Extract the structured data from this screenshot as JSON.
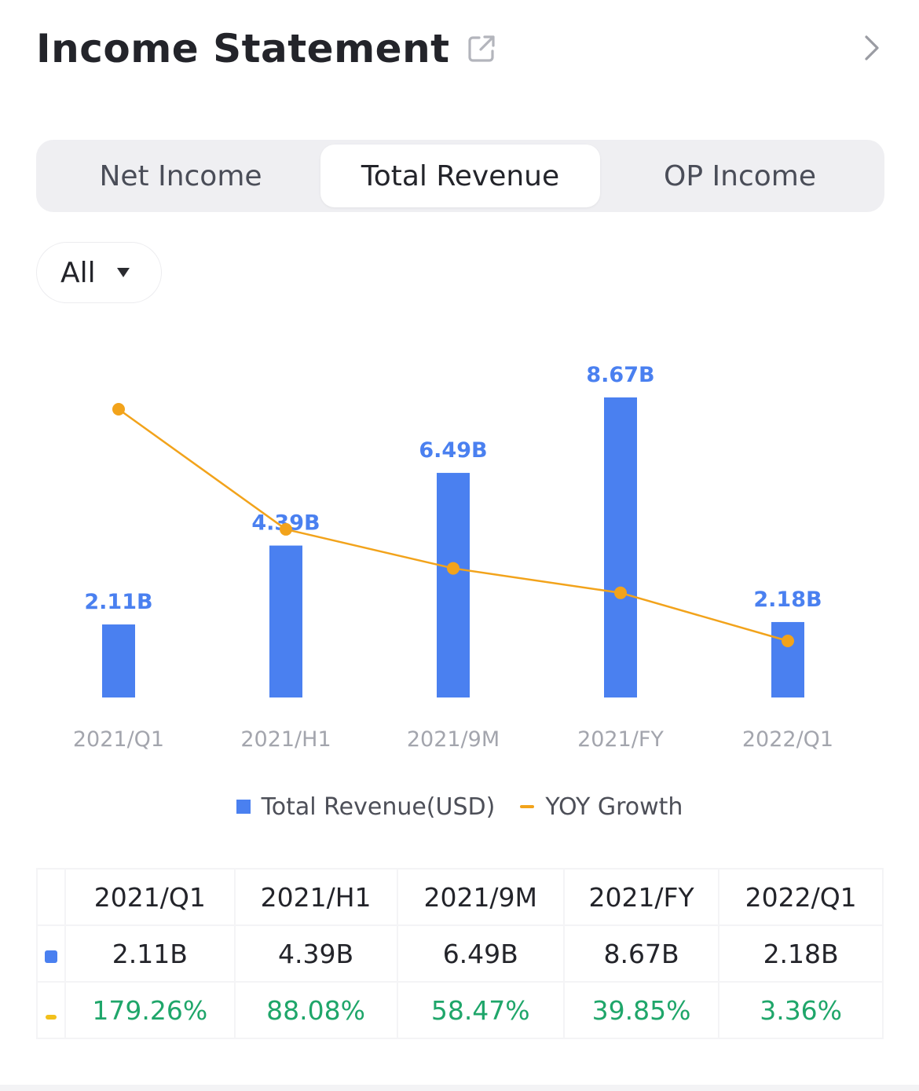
{
  "header": {
    "title": "Income Statement",
    "share_icon": "share-external-icon",
    "more_icon": "chevron-right-icon"
  },
  "tabs": [
    {
      "label": "Net Income",
      "active": false
    },
    {
      "label": "Total Revenue",
      "active": true
    },
    {
      "label": "OP Income",
      "active": false
    }
  ],
  "period_select": {
    "value": "All"
  },
  "colors": {
    "bar": "#4a80f0",
    "line": "#f2a31b",
    "positive": "#1fa66a"
  },
  "chart_data": {
    "type": "bar",
    "categories": [
      "2021/Q1",
      "2021/H1",
      "2021/9M",
      "2021/FY",
      "2022/Q1"
    ],
    "series": [
      {
        "name": "Total Revenue(USD)",
        "type": "bar",
        "values": [
          2.11,
          4.39,
          6.49,
          8.67,
          2.18
        ],
        "labels": [
          "2.11B",
          "4.39B",
          "6.49B",
          "8.67B",
          "2.18B"
        ]
      },
      {
        "name": "YOY Growth",
        "type": "line",
        "values": [
          179.26,
          88.08,
          58.47,
          39.85,
          3.36
        ]
      }
    ],
    "legend_position": "bottom"
  },
  "legend": {
    "bar_label": "Total Revenue(USD)",
    "line_label": "YOY Growth"
  },
  "table": {
    "headers": [
      "2021/Q1",
      "2021/H1",
      "2021/9M",
      "2021/FY",
      "2022/Q1"
    ],
    "revenue_row": [
      "2.11B",
      "4.39B",
      "6.49B",
      "8.67B",
      "2.18B"
    ],
    "growth_row": [
      "179.26%",
      "88.08%",
      "58.47%",
      "39.85%",
      "3.36%"
    ]
  }
}
